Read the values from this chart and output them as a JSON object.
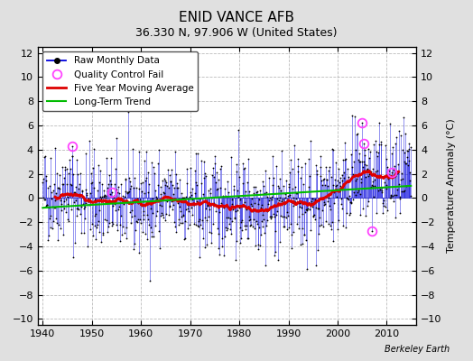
{
  "title": "ENID VANCE AFB",
  "subtitle": "36.330 N, 97.906 W (United States)",
  "ylabel": "Temperature Anomaly (°C)",
  "watermark": "Berkeley Earth",
  "xlim": [
    1939,
    2016
  ],
  "ylim": [
    -10.5,
    12.5
  ],
  "yticks": [
    -10,
    -8,
    -6,
    -4,
    -2,
    0,
    2,
    4,
    6,
    8,
    10,
    12
  ],
  "xticks": [
    1940,
    1950,
    1960,
    1970,
    1980,
    1990,
    2000,
    2010
  ],
  "raw_color": "#0000dd",
  "raw_marker_color": "#000000",
  "ma_color": "#dd0000",
  "trend_color": "#00bb00",
  "qc_color": "#ff44ff",
  "fig_facecolor": "#e0e0e0",
  "plot_facecolor": "#ffffff",
  "seed": 42,
  "start_year": 1940,
  "end_year": 2014
}
